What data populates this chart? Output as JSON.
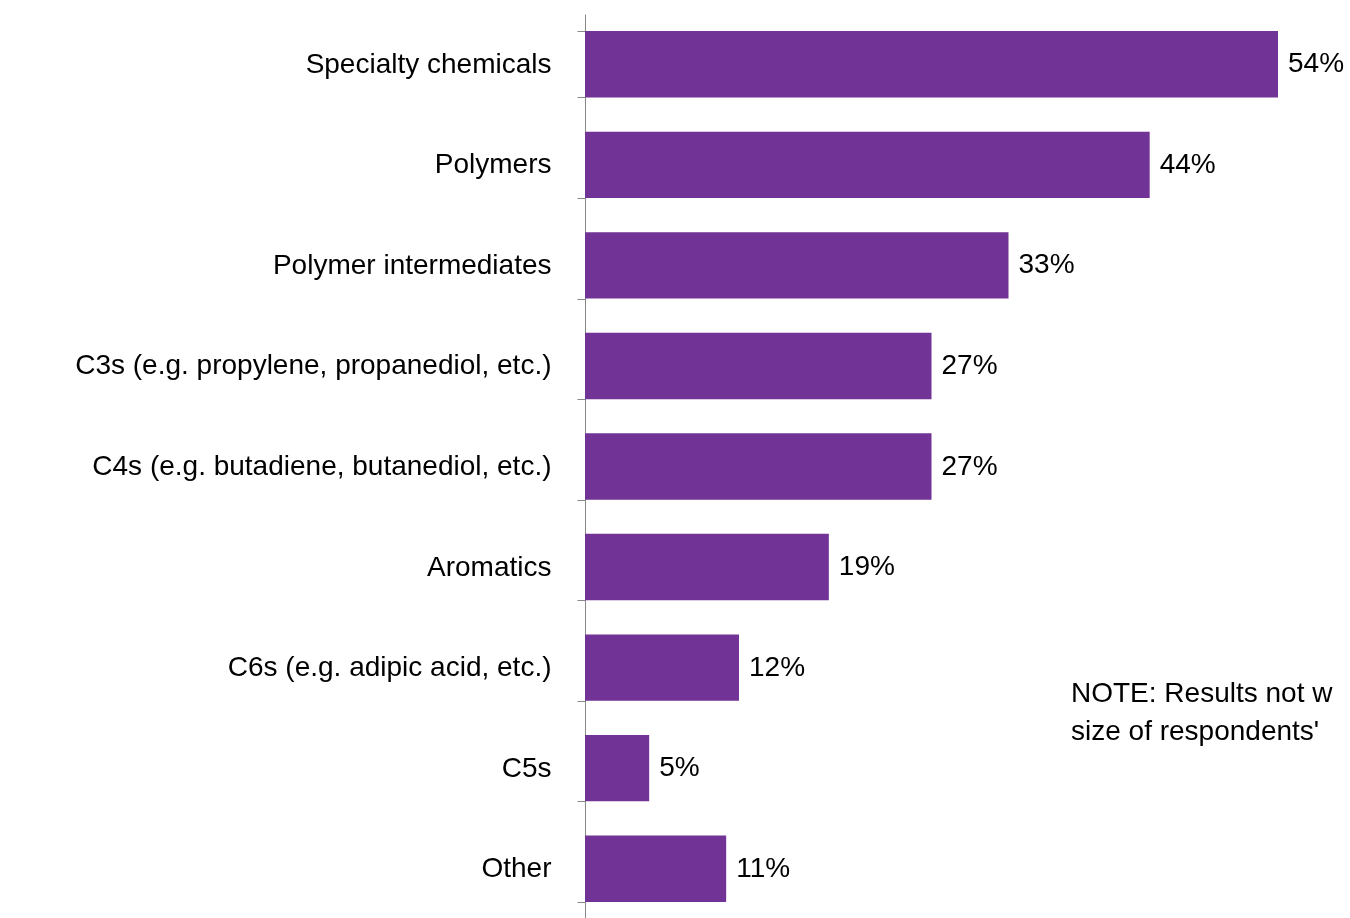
{
  "chart_data": {
    "type": "bar",
    "orientation": "horizontal",
    "categories": [
      "Specialty chemicals",
      "Polymers",
      "Polymer intermediates",
      "C3s (e.g. propylene, propanediol, etc.)",
      "C4s (e.g. butadiene, butanediol, etc.)",
      "Aromatics",
      "C6s (e.g. adipic acid, etc.)",
      "C5s",
      "Other"
    ],
    "values": [
      54,
      44,
      33,
      27,
      27,
      19,
      12,
      5,
      11
    ],
    "value_labels": [
      "54%",
      "44%",
      "33%",
      "27%",
      "27%",
      "19%",
      "12%",
      "5%",
      "11%"
    ],
    "color": "#723396",
    "annotations": [
      "NOTE: Results not w",
      "size of respondents'"
    ]
  }
}
